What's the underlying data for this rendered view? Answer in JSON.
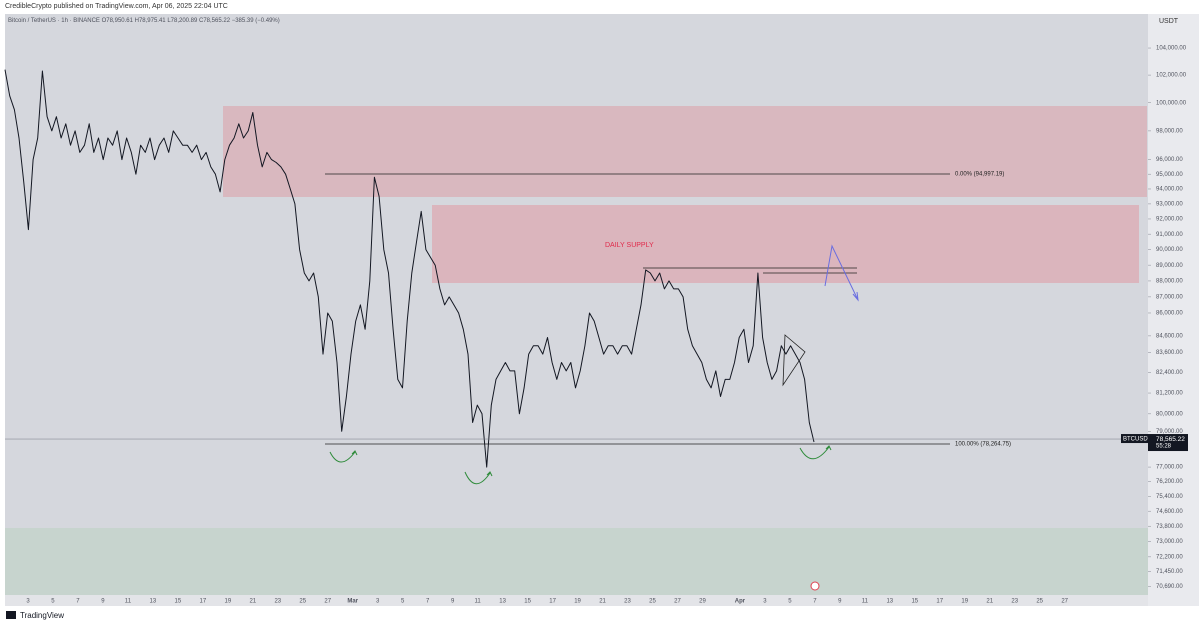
{
  "chart_data": {
    "type": "line",
    "publisher": "CredibleCrypto published on TradingView.com, Apr 06, 2025 22:04 UTC",
    "title": "Bitcoin / TetherUS · 1h · BINANCE",
    "ohlc": "O78,950.61 H78,975.41 L78,200.89 C78,565.22 −385.39 (−0.49%)",
    "currency": "USDT",
    "color": "#131722",
    "log_scale": true,
    "values": [
      102400,
      100500,
      99500,
      97500,
      94500,
      91300,
      96000,
      97500,
      102300,
      99000,
      98000,
      99000,
      97500,
      98500,
      97000,
      98000,
      96500,
      97000,
      98500,
      96500,
      97500,
      96000,
      97500,
      97000,
      98000,
      96000,
      97500,
      96500,
      95000,
      97000,
      96500,
      97500,
      96000,
      97000,
      97500,
      96500,
      98000,
      97500,
      97000,
      97000,
      96500,
      97000,
      96000,
      96500,
      95500,
      95000,
      93800,
      96000,
      97000,
      97500,
      98500,
      97500,
      98000,
      99300,
      97000,
      95500,
      96500,
      96000,
      95800,
      95500,
      95000,
      94000,
      93000,
      90000,
      88500,
      88000,
      88500,
      87000,
      83500,
      86000,
      85500,
      83000,
      79000,
      81000,
      83500,
      85500,
      86500,
      85000,
      88000,
      94800,
      93500,
      90000,
      88500,
      85000,
      82000,
      81500,
      85500,
      88500,
      90500,
      92500,
      90000,
      89500,
      89000,
      87500,
      86500,
      87000,
      86500,
      86000,
      85000,
      83500,
      79500,
      80500,
      80000,
      77000,
      80500,
      82000,
      82500,
      83000,
      82500,
      82500,
      80000,
      81500,
      83500,
      84000,
      84000,
      83500,
      84500,
      83000,
      82000,
      83000,
      82500,
      83000,
      81500,
      82500,
      84000,
      86000,
      85500,
      84500,
      83500,
      84000,
      84000,
      83500,
      84000,
      84000,
      83500,
      85000,
      86500,
      88700,
      88500,
      88000,
      88500,
      87500,
      88000,
      87500,
      87500,
      87000,
      85000,
      84000,
      83500,
      83000,
      82000,
      81500,
      82500,
      81000,
      82000,
      82000,
      83000,
      84500,
      85000,
      83000,
      84000,
      88500,
      84500,
      83000,
      82000,
      82500,
      84000,
      83500,
      84000,
      83500,
      83000,
      82000,
      79500,
      78400
    ],
    "ylim": [
      70300,
      106570
    ],
    "yticks": [
      {
        "value": 104000,
        "label": "104,000.00"
      },
      {
        "value": 102000,
        "label": "102,000.00"
      },
      {
        "value": 100000,
        "label": "100,000.00"
      },
      {
        "value": 98000,
        "label": "98,000.00"
      },
      {
        "value": 96000,
        "label": "96,000.00"
      },
      {
        "value": 95000,
        "label": "95,000.00"
      },
      {
        "value": 94000,
        "label": "94,000.00"
      },
      {
        "value": 93000,
        "label": "93,000.00"
      },
      {
        "value": 92000,
        "label": "92,000.00"
      },
      {
        "value": 91000,
        "label": "91,000.00"
      },
      {
        "value": 90000,
        "label": "90,000.00"
      },
      {
        "value": 89000,
        "label": "89,000.00"
      },
      {
        "value": 88000,
        "label": "88,000.00"
      },
      {
        "value": 87000,
        "label": "87,000.00"
      },
      {
        "value": 86000,
        "label": "86,000.00"
      },
      {
        "value": 84600,
        "label": "84,600.00"
      },
      {
        "value": 83600,
        "label": "83,600.00"
      },
      {
        "value": 82400,
        "label": "82,400.00"
      },
      {
        "value": 81200,
        "label": "81,200.00"
      },
      {
        "value": 80000,
        "label": "80,000.00"
      },
      {
        "value": 79000,
        "label": "79,000.00"
      },
      {
        "value": 77000,
        "label": "77,000.00"
      },
      {
        "value": 76200,
        "label": "76,200.00"
      },
      {
        "value": 75400,
        "label": "75,400.00"
      },
      {
        "value": 74600,
        "label": "74,600.00"
      },
      {
        "value": 73800,
        "label": "73,800.00"
      },
      {
        "value": 73000,
        "label": "73,000.00"
      },
      {
        "value": 72200,
        "label": "72,200.00"
      },
      {
        "value": 71450,
        "label": "71,450.00"
      },
      {
        "value": 70690,
        "label": "70,690.00"
      }
    ],
    "x_labels": [
      "3",
      "5",
      "7",
      "9",
      "11",
      "13",
      "15",
      "17",
      "19",
      "21",
      "23",
      "25",
      "27",
      "Mar",
      "3",
      "5",
      "7",
      "9",
      "11",
      "13",
      "15",
      "17",
      "19",
      "21",
      "23",
      "25",
      "27",
      "29",
      "Apr",
      "3",
      "5",
      "7",
      "9",
      "11",
      "13",
      "15",
      "17",
      "19",
      "21",
      "23",
      "25",
      "27"
    ],
    "annotations": [
      "DAILY SUPPLY",
      "0.00% (94,997.19)",
      "100.00% (78,264.75)"
    ],
    "last_price": {
      "symbol": "BTCUSDT",
      "price": {
        "value": 78565.22,
        "label": "78,565.22"
      },
      "timer": "55:28"
    },
    "footer": "TradingView"
  }
}
